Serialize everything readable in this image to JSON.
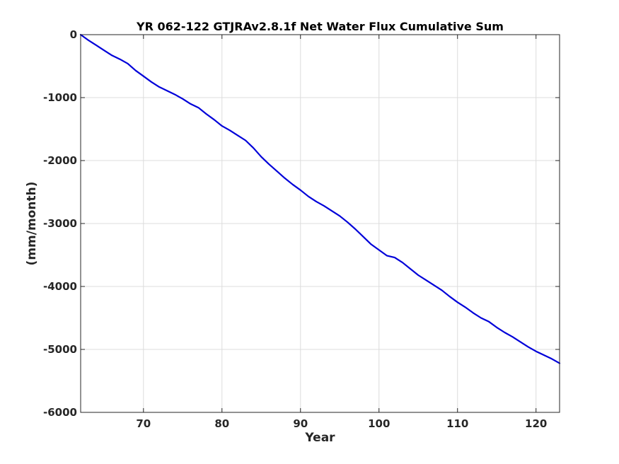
{
  "chart_data": {
    "type": "line",
    "title": "YR 062-122 GTJRAv2.8.1f Net Water Flux Cumulative Sum",
    "xlabel": "Year",
    "ylabel": "(mm/month)",
    "xlim": [
      62,
      123
    ],
    "ylim": [
      -6000,
      0
    ],
    "xticks": [
      70,
      80,
      90,
      100,
      110,
      120
    ],
    "yticks": [
      0,
      -1000,
      -2000,
      -3000,
      -4000,
      -5000,
      -6000
    ],
    "grid": true,
    "legend": "none",
    "series": [
      {
        "color": "#0000d9",
        "x": [
          62,
          63,
          64,
          65,
          66,
          67,
          68,
          69,
          70,
          71,
          72,
          73,
          74,
          75,
          76,
          77,
          78,
          79,
          80,
          81,
          82,
          83,
          84,
          85,
          86,
          87,
          88,
          89,
          90,
          91,
          92,
          93,
          94,
          95,
          96,
          97,
          98,
          99,
          100,
          101,
          102,
          103,
          104,
          105,
          106,
          107,
          108,
          109,
          110,
          111,
          112,
          113,
          114,
          115,
          116,
          117,
          118,
          119,
          120,
          121,
          122,
          123
        ],
        "y": [
          0,
          -90,
          -170,
          -250,
          -330,
          -390,
          -460,
          -570,
          -660,
          -750,
          -830,
          -890,
          -950,
          -1020,
          -1100,
          -1160,
          -1260,
          -1350,
          -1450,
          -1520,
          -1600,
          -1680,
          -1800,
          -1940,
          -2060,
          -2170,
          -2280,
          -2380,
          -2470,
          -2570,
          -2650,
          -2720,
          -2800,
          -2880,
          -2980,
          -3090,
          -3210,
          -3330,
          -3420,
          -3510,
          -3540,
          -3620,
          -3720,
          -3820,
          -3900,
          -3980,
          -4060,
          -4160,
          -4250,
          -4330,
          -4420,
          -4500,
          -4560,
          -4650,
          -4730,
          -4800,
          -4880,
          -4960,
          -5030,
          -5090,
          -5150,
          -5220
        ]
      }
    ]
  }
}
